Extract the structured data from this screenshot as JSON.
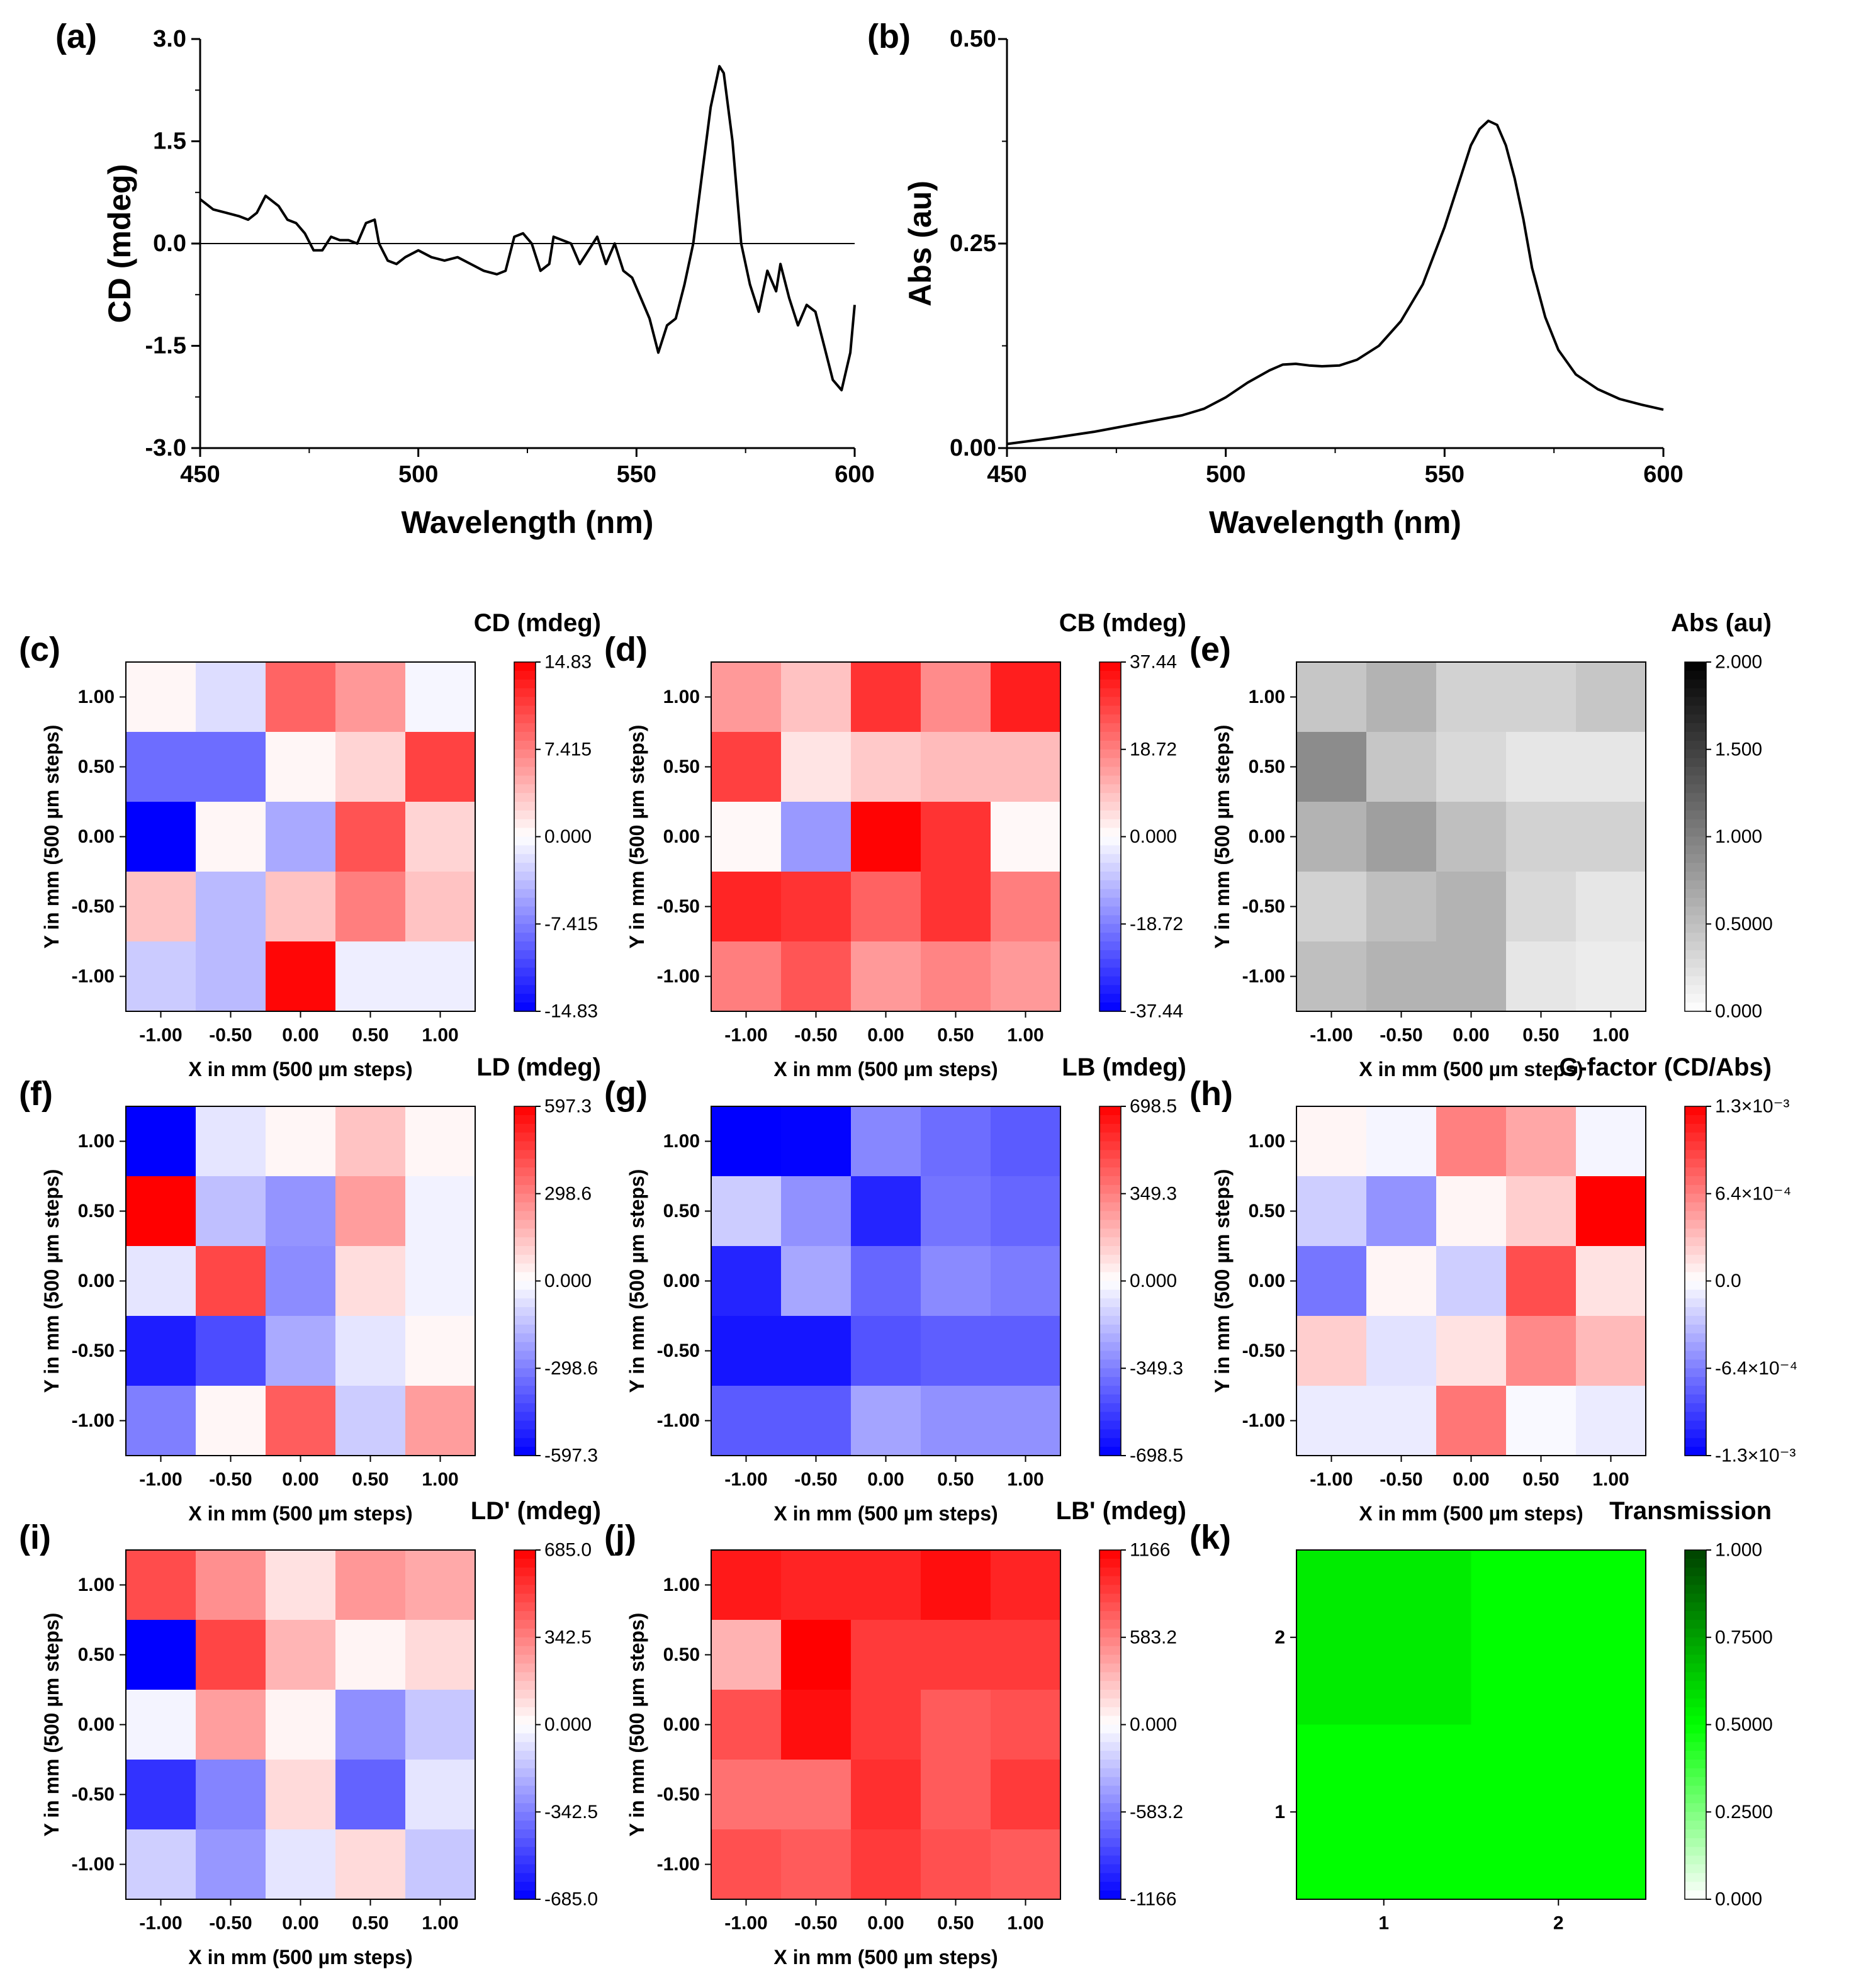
{
  "figure": {
    "description_panels": [
      "a",
      "b",
      "c",
      "d",
      "e",
      "f",
      "g",
      "h",
      "i",
      "j",
      "k"
    ]
  },
  "chart_data": [
    {
      "id": "a",
      "type": "line",
      "panel_label": "(a)",
      "xlabel": "Wavelength (nm)",
      "ylabel": "CD (mdeg)",
      "xlim": [
        450,
        600
      ],
      "ylim": [
        -3.0,
        3.0
      ],
      "xticks": [
        "450",
        "500",
        "550",
        "600"
      ],
      "xtick_values": [
        450,
        500,
        550,
        600
      ],
      "yticks": [
        "3.0",
        "1.5",
        "0.0",
        "-1.5",
        "-3.0"
      ],
      "ytick_values": [
        3.0,
        1.5,
        0.0,
        -1.5,
        -3.0
      ],
      "zero_line": true,
      "x": [
        450,
        453,
        456,
        459,
        461,
        463,
        465,
        466,
        468,
        470,
        472,
        474,
        476,
        478,
        480,
        482,
        484,
        486,
        488,
        490,
        491,
        493,
        495,
        497,
        500,
        503,
        506,
        509,
        512,
        515,
        518,
        520,
        522,
        524,
        526,
        528,
        530,
        531,
        533,
        535,
        537,
        539,
        541,
        543,
        545,
        547,
        549,
        551,
        553,
        555,
        557,
        559,
        561,
        563,
        565,
        567,
        569,
        570,
        572,
        574,
        576,
        578,
        580,
        582,
        583,
        585,
        587,
        589,
        591,
        593,
        595,
        597,
        599,
        600
      ],
      "values": [
        0.65,
        0.5,
        0.45,
        0.4,
        0.35,
        0.45,
        0.7,
        0.65,
        0.55,
        0.35,
        0.3,
        0.15,
        -0.1,
        -0.1,
        0.1,
        0.05,
        0.05,
        0.0,
        0.3,
        0.35,
        0.0,
        -0.25,
        -0.3,
        -0.2,
        -0.1,
        -0.2,
        -0.25,
        -0.2,
        -0.3,
        -0.4,
        -0.45,
        -0.4,
        0.1,
        0.15,
        0.0,
        -0.4,
        -0.3,
        0.1,
        0.05,
        0.0,
        -0.3,
        -0.1,
        0.1,
        -0.3,
        0.0,
        -0.4,
        -0.5,
        -0.8,
        -1.1,
        -1.6,
        -1.2,
        -1.1,
        -0.6,
        0.0,
        1.0,
        2.0,
        2.6,
        2.5,
        1.5,
        0.0,
        -0.6,
        -1.0,
        -0.4,
        -0.7,
        -0.3,
        -0.8,
        -1.2,
        -0.9,
        -1.0,
        -1.5,
        -2.0,
        -2.15,
        -1.6,
        -0.9
      ]
    },
    {
      "id": "b",
      "type": "line",
      "panel_label": "(b)",
      "xlabel": "Wavelength (nm)",
      "ylabel": "Abs (au)",
      "xlim": [
        450,
        600
      ],
      "ylim": [
        0,
        0.5
      ],
      "xticks": [
        "450",
        "500",
        "550",
        "600"
      ],
      "xtick_values": [
        450,
        500,
        550,
        600
      ],
      "yticks": [
        "0.50",
        "0.25",
        "0.00"
      ],
      "ytick_values": [
        0.5,
        0.25,
        0.0
      ],
      "x": [
        450,
        460,
        470,
        480,
        490,
        495,
        500,
        505,
        510,
        513,
        516,
        519,
        522,
        526,
        530,
        535,
        540,
        545,
        550,
        553,
        556,
        558,
        560,
        562,
        564,
        566,
        568,
        570,
        573,
        576,
        580,
        585,
        590,
        595,
        600
      ],
      "values": [
        0.005,
        0.012,
        0.02,
        0.03,
        0.04,
        0.048,
        0.062,
        0.08,
        0.095,
        0.102,
        0.103,
        0.101,
        0.1,
        0.101,
        0.108,
        0.125,
        0.155,
        0.2,
        0.27,
        0.32,
        0.37,
        0.39,
        0.4,
        0.395,
        0.37,
        0.33,
        0.28,
        0.22,
        0.16,
        0.12,
        0.09,
        0.072,
        0.06,
        0.053,
        0.047
      ]
    },
    {
      "id": "c",
      "type": "heatmap",
      "panel_label": "(c)",
      "title": "CD (mdeg)",
      "xlabel": "X in mm (500 µm steps)",
      "ylabel": "Y in mm (500 µm steps)",
      "xticks": [
        "-1.00",
        "-0.50",
        "0.00",
        "0.50",
        "1.00"
      ],
      "yticks": [
        "1.00",
        "0.50",
        "0.00",
        "-0.50",
        "-1.00"
      ],
      "colormap": "bwr",
      "cbar_ticks": [
        "14.83",
        "7.415",
        "0.000",
        "-7.415",
        "-14.83"
      ],
      "vmin": -14.83,
      "vmax": 14.83,
      "grid_values": [
        [
          0.5,
          -2.0,
          9.0,
          6.0,
          -0.5
        ],
        [
          -8.5,
          -8.5,
          0.5,
          2.5,
          11.0
        ],
        [
          -14.83,
          0.5,
          -5.0,
          10.0,
          2.5
        ],
        [
          3.5,
          -4.0,
          3.5,
          7.5,
          3.5
        ],
        [
          -3.0,
          -4.0,
          14.5,
          -1.0,
          -1.0
        ]
      ]
    },
    {
      "id": "d",
      "type": "heatmap",
      "panel_label": "(d)",
      "title": "CB (mdeg)",
      "xlabel": "X in mm (500 µm steps)",
      "ylabel": "Y in mm (500 µm steps)",
      "xticks": [
        "-1.00",
        "-0.50",
        "0.00",
        "0.50",
        "1.00"
      ],
      "yticks": [
        "1.00",
        "0.50",
        "0.00",
        "-0.50",
        "-1.00"
      ],
      "colormap": "bwr",
      "cbar_ticks": [
        "37.44",
        "18.72",
        "0.000",
        "-18.72",
        "-37.44"
      ],
      "vmin": -37.44,
      "vmax": 37.44,
      "grid_values": [
        [
          15.0,
          9.0,
          30.0,
          17.0,
          33.0
        ],
        [
          28.0,
          4.0,
          8.0,
          10.0,
          10.0
        ],
        [
          1.0,
          -15.0,
          37.0,
          30.0,
          1.0
        ],
        [
          32.0,
          30.0,
          23.0,
          30.0,
          19.0
        ],
        [
          19.0,
          25.0,
          15.0,
          18.0,
          15.0
        ]
      ]
    },
    {
      "id": "e",
      "type": "heatmap",
      "panel_label": "(e)",
      "title": "Abs (au)",
      "xlabel": "X in mm (500 µm steps)",
      "ylabel": "Y in mm (500 µm steps)",
      "xticks": [
        "-1.00",
        "-0.50",
        "0.00",
        "0.50",
        "1.00"
      ],
      "yticks": [
        "1.00",
        "0.50",
        "0.00",
        "-0.50",
        "-1.00"
      ],
      "colormap": "greys",
      "cbar_ticks": [
        "2.000",
        "1.500",
        "1.000",
        "0.5000",
        "0.000"
      ],
      "vmin": 0,
      "vmax": 2.0,
      "grid_values": [
        [
          0.45,
          0.6,
          0.35,
          0.35,
          0.45
        ],
        [
          0.9,
          0.45,
          0.3,
          0.2,
          0.2
        ],
        [
          0.6,
          0.75,
          0.5,
          0.35,
          0.35
        ],
        [
          0.35,
          0.5,
          0.6,
          0.3,
          0.2
        ],
        [
          0.5,
          0.6,
          0.6,
          0.2,
          0.15
        ]
      ]
    },
    {
      "id": "f",
      "type": "heatmap",
      "panel_label": "(f)",
      "title": "LD (mdeg)",
      "xlabel": "X in mm (500 µm steps)",
      "ylabel": "Y in mm (500 µm steps)",
      "xticks": [
        "-1.00",
        "-0.50",
        "0.00",
        "0.50",
        "1.00"
      ],
      "yticks": [
        "1.00",
        "0.50",
        "0.00",
        "-0.50",
        "-1.00"
      ],
      "colormap": "bwr",
      "cbar_ticks": [
        "597.3",
        "298.6",
        "0.000",
        "-298.6",
        "-597.3"
      ],
      "vmin": -597.3,
      "vmax": 597.3,
      "grid_values": [
        [
          -597.3,
          -60.0,
          20.0,
          140.0,
          20.0
        ],
        [
          597.3,
          -150.0,
          -250.0,
          230.0,
          -30.0
        ],
        [
          -60.0,
          430.0,
          -270.0,
          80.0,
          -30.0
        ],
        [
          -530.0,
          -420.0,
          -200.0,
          -60.0,
          20.0
        ],
        [
          -300.0,
          20.0,
          380.0,
          -120.0,
          230.0
        ]
      ]
    },
    {
      "id": "g",
      "type": "heatmap",
      "panel_label": "(g)",
      "title": "LB (mdeg)",
      "xlabel": "X in mm (500 µm steps)",
      "ylabel": "Y in mm (500 µm steps)",
      "xticks": [
        "-1.00",
        "-0.50",
        "0.00",
        "0.50",
        "1.00"
      ],
      "yticks": [
        "1.00",
        "0.50",
        "0.00",
        "-0.50",
        "-1.00"
      ],
      "colormap": "bwr",
      "cbar_ticks": [
        "698.5",
        "349.3",
        "0.000",
        "-349.3",
        "-698.5"
      ],
      "vmin": -698.5,
      "vmax": 698.5,
      "grid_values": [
        [
          -698.5,
          -690.0,
          -330.0,
          -400.0,
          -450.0
        ],
        [
          -140.0,
          -300.0,
          -600.0,
          -380.0,
          -420.0
        ],
        [
          -600.0,
          -240.0,
          -420.0,
          -320.0,
          -360.0
        ],
        [
          -640.0,
          -640.0,
          -470.0,
          -440.0,
          -440.0
        ],
        [
          -450.0,
          -450.0,
          -250.0,
          -300.0,
          -300.0
        ]
      ]
    },
    {
      "id": "h",
      "type": "heatmap",
      "panel_label": "(h)",
      "title": "G-factor (CD/Abs)",
      "xlabel": "X in mm (500 µm steps)",
      "ylabel": "Y in mm (500 µm steps)",
      "xticks": [
        "-1.00",
        "-0.50",
        "0.00",
        "0.50",
        "1.00"
      ],
      "yticks": [
        "1.00",
        "0.50",
        "0.00",
        "-0.50",
        "-1.00"
      ],
      "colormap": "bwr",
      "cbar_ticks": [
        "1.3×10⁻³",
        "6.4×10⁻⁴",
        "0.0",
        "-6.4×10⁻⁴",
        "-1.3×10⁻³"
      ],
      "vmin": -0.0013,
      "vmax": 0.0013,
      "grid_values": [
        [
          5e-05,
          -5e-05,
          0.00065,
          0.00045,
          -5e-05
        ],
        [
          -0.00025,
          -0.00055,
          5e-05,
          0.00025,
          0.0013
        ],
        [
          -0.0007,
          5e-05,
          -0.00025,
          0.0009,
          0.00015
        ],
        [
          0.00025,
          -0.00015,
          0.00015,
          0.0006,
          0.00035
        ],
        [
          -0.0001,
          -0.0001,
          0.0007,
          -3e-05,
          -0.0001
        ]
      ]
    },
    {
      "id": "i",
      "type": "heatmap",
      "panel_label": "(i)",
      "title": "LD' (mdeg)",
      "xlabel": "X in mm (500 µm steps)",
      "ylabel": "Y in mm (500 µm steps)",
      "xticks": [
        "-1.00",
        "-0.50",
        "0.00",
        "0.50",
        "1.00"
      ],
      "yticks": [
        "1.00",
        "0.50",
        "0.00",
        "-0.50",
        "-1.00"
      ],
      "colormap": "bwr",
      "cbar_ticks": [
        "685.0",
        "342.5",
        "0.000",
        "-342.5",
        "-685.0"
      ],
      "vmin": -685.0,
      "vmax": 685.0,
      "grid_values": [
        [
          480.0,
          300.0,
          80.0,
          280.0,
          230.0
        ],
        [
          -685.0,
          500.0,
          200.0,
          30.0,
          100.0
        ],
        [
          -30.0,
          260.0,
          30.0,
          -300.0,
          -150.0
        ],
        [
          -550.0,
          -330.0,
          100.0,
          -420.0,
          -70.0
        ],
        [
          -130.0,
          -280.0,
          -70.0,
          100.0,
          -150.0
        ]
      ]
    },
    {
      "id": "j",
      "type": "heatmap",
      "panel_label": "(j)",
      "title": "LB' (mdeg)",
      "xlabel": "X in mm (500 µm steps)",
      "ylabel": "Y in mm (500 µm steps)",
      "xticks": [
        "-1.00",
        "-0.50",
        "0.00",
        "0.50",
        "1.00"
      ],
      "yticks": [
        "1.00",
        "0.50",
        "0.00",
        "-0.50",
        "-1.00"
      ],
      "colormap": "bwr",
      "cbar_ticks": [
        "1166",
        "583.2",
        "0.000",
        "-583.2",
        "-1166"
      ],
      "vmin": -1166,
      "vmax": 1166,
      "grid_values": [
        [
          1050.0,
          1000.0,
          1000.0,
          1100.0,
          1000.0
        ],
        [
          350.0,
          1166.0,
          900.0,
          900.0,
          900.0
        ],
        [
          800.0,
          1100.0,
          900.0,
          750.0,
          800.0
        ],
        [
          650.0,
          650.0,
          950.0,
          750.0,
          900.0
        ],
        [
          800.0,
          750.0,
          900.0,
          800.0,
          750.0
        ]
      ]
    },
    {
      "id": "k",
      "type": "heatmap",
      "panel_label": "(k)",
      "title": "Transmission",
      "xticks": [
        "1",
        "2"
      ],
      "yticks": [
        "2",
        "1"
      ],
      "colormap": "greens",
      "cbar_ticks": [
        "1.000",
        "0.7500",
        "0.5000",
        "0.2500",
        "0.000"
      ],
      "vmin": 0,
      "vmax": 1.0,
      "grid_values": [
        [
          0.55,
          0.5
        ],
        [
          0.5,
          0.5
        ]
      ]
    }
  ]
}
